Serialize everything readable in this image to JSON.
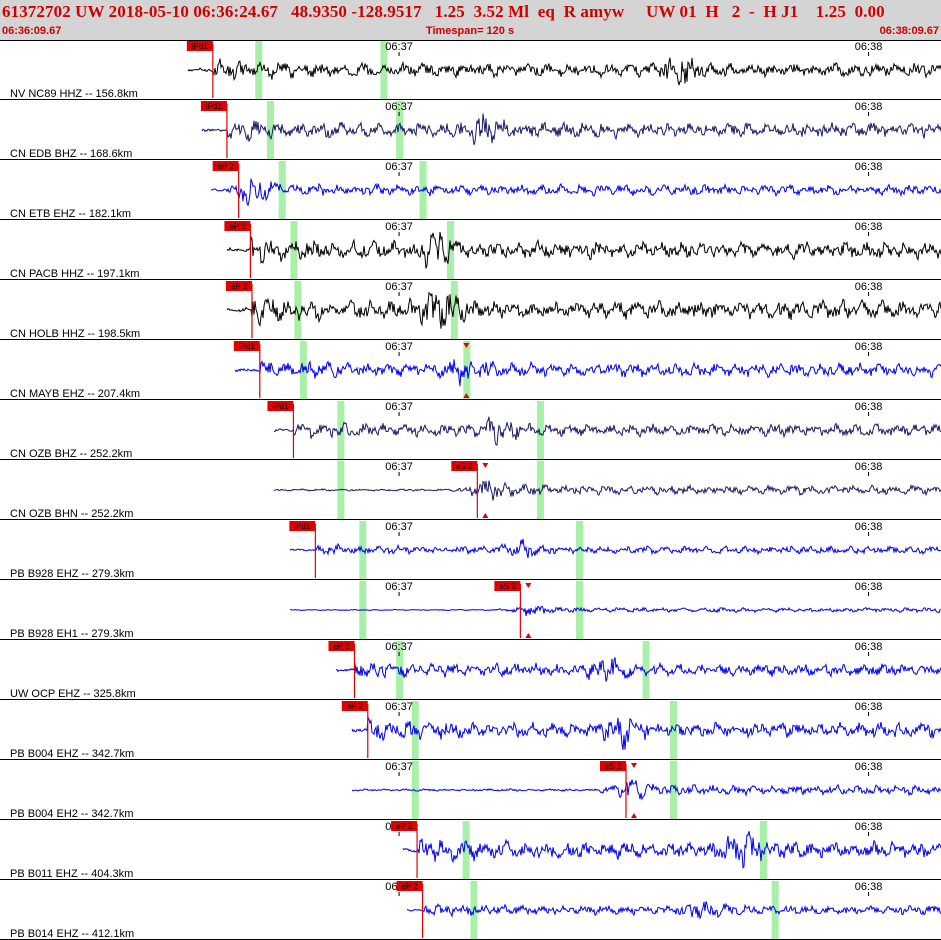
{
  "header": {
    "title": "61372702 UW 2018-05-10 06:36:24.67   48.9350 -128.9517   1.25  3.52 Ml  eq  R amyw     UW 01  H   2  -  H J1    1.25  0.00",
    "start_time": "06:36:09.67",
    "timespan": "Timespan= 120 s",
    "end_time": "06:38:09.67"
  },
  "time_ticks": [
    "06:37",
    "06:38"
  ],
  "colors": {
    "trace_black": "#000000",
    "trace_navy": "#1a1a66",
    "trace_blue": "#0000ee",
    "pick_red": "#e00000",
    "window_green": "#a8f0a8",
    "header_bg": "#d4d4d4"
  },
  "traces": [
    {
      "label": "NV NC89 HHZ -- 156.8km",
      "color": "black",
      "pick": "iPd1",
      "pick_t": 27.2,
      "start_t": 24.0,
      "green": [
        33.0,
        49.0
      ],
      "amp": 0.45,
      "burst_t": 87.0
    },
    {
      "label": "CN EDB BHZ -- 168.6km",
      "color": "navy",
      "pick": "iPd1",
      "pick_t": 29.0,
      "start_t": 25.8,
      "green": [
        34.5,
        51.0
      ],
      "amp": 0.5,
      "burst_t": 62.0
    },
    {
      "label": "CN ETB EHZ -- 182.1km",
      "color": "blue",
      "pick": "eP 2",
      "pick_t": 30.5,
      "start_t": 27.0,
      "green": [
        36.0,
        54.0
      ],
      "amp": 0.35,
      "burst_t": 32.0
    },
    {
      "label": "CN PACB HHZ -- 197.1km",
      "color": "black",
      "pick": "eP 2",
      "pick_t": 32.0,
      "start_t": 29.0,
      "green": [
        37.5,
        57.5
      ],
      "amp": 0.55,
      "burst_t": 56.0
    },
    {
      "label": "CN HOLB HHZ -- 198.5km",
      "color": "black",
      "pick": "eP 2",
      "pick_t": 32.2,
      "start_t": 29.0,
      "green": [
        38.0,
        58.0
      ],
      "amp": 0.6,
      "burst_t": 56.0
    },
    {
      "label": "CN MAYB EHZ -- 207.4km",
      "color": "blue",
      "pick": "iPd1",
      "pick_t": 33.2,
      "start_t": 30.0,
      "green": [
        38.7,
        59.6
      ],
      "amp": 0.45,
      "burst_t": 60.0,
      "s_marker": "",
      "s_t": 59.6
    },
    {
      "label": "CN OZB BHZ -- 252.2km",
      "color": "navy",
      "pick": "iPd1",
      "pick_t": 37.5,
      "start_t": 35.0,
      "green": [
        43.5,
        69.0
      ],
      "amp": 0.4,
      "burst_t": 64.0
    },
    {
      "label": "CN OZB BHN -- 252.2km",
      "color": "navy",
      "pick": "eS 2",
      "pick_t": 61.0,
      "start_t": 35.0,
      "green": [
        43.5,
        69.0
      ],
      "amp": 0.3,
      "burst_t": 62.0
    },
    {
      "label": "PB B928 EHZ -- 279.3km",
      "color": "blue",
      "pick": "iPd1",
      "pick_t": 40.3,
      "start_t": 37.0,
      "green": [
        46.3,
        74.0
      ],
      "amp": 0.25,
      "burst_t": 67.0
    },
    {
      "label": "PB B928 EH1 -- 279.3km",
      "color": "blue",
      "pick": "eS 2",
      "pick_t": 66.5,
      "start_t": 37.0,
      "green": [
        46.3,
        74.0
      ],
      "amp": 0.15,
      "burst_t": 67.0
    },
    {
      "label": "UW OCP EHZ -- 325.8km",
      "color": "blue",
      "pick": "eP 2",
      "pick_t": 45.3,
      "start_t": 43.0,
      "green": [
        51.0,
        82.5
      ],
      "amp": 0.4,
      "burst_t": 78.0
    },
    {
      "label": "PB B004 EHZ -- 342.7km",
      "color": "blue",
      "pick": "eP 2",
      "pick_t": 47.0,
      "start_t": 45.0,
      "green": [
        53.0,
        86.0
      ],
      "amp": 0.5,
      "burst_t": 80.0
    },
    {
      "label": "PB B004 EH2 -- 342.7km",
      "color": "blue",
      "pick": "eS 2",
      "pick_t": 80.0,
      "start_t": 45.0,
      "green": [
        53.0,
        86.0
      ],
      "amp": 0.3,
      "burst_t": 80.0
    },
    {
      "label": "PB B011 EHZ -- 404.3km",
      "color": "blue",
      "pick": "eP 2",
      "pick_t": 53.3,
      "start_t": 51.5,
      "green": [
        59.5,
        97.5
      ],
      "amp": 0.55,
      "burst_t": 95.0
    },
    {
      "label": "PB B014 EHZ -- 412.1km",
      "color": "blue",
      "pick": "eP 2",
      "pick_t": 54.0,
      "start_t": 52.0,
      "green": [
        60.5,
        99.0
      ],
      "amp": 0.3,
      "burst_t": 90.0
    }
  ]
}
